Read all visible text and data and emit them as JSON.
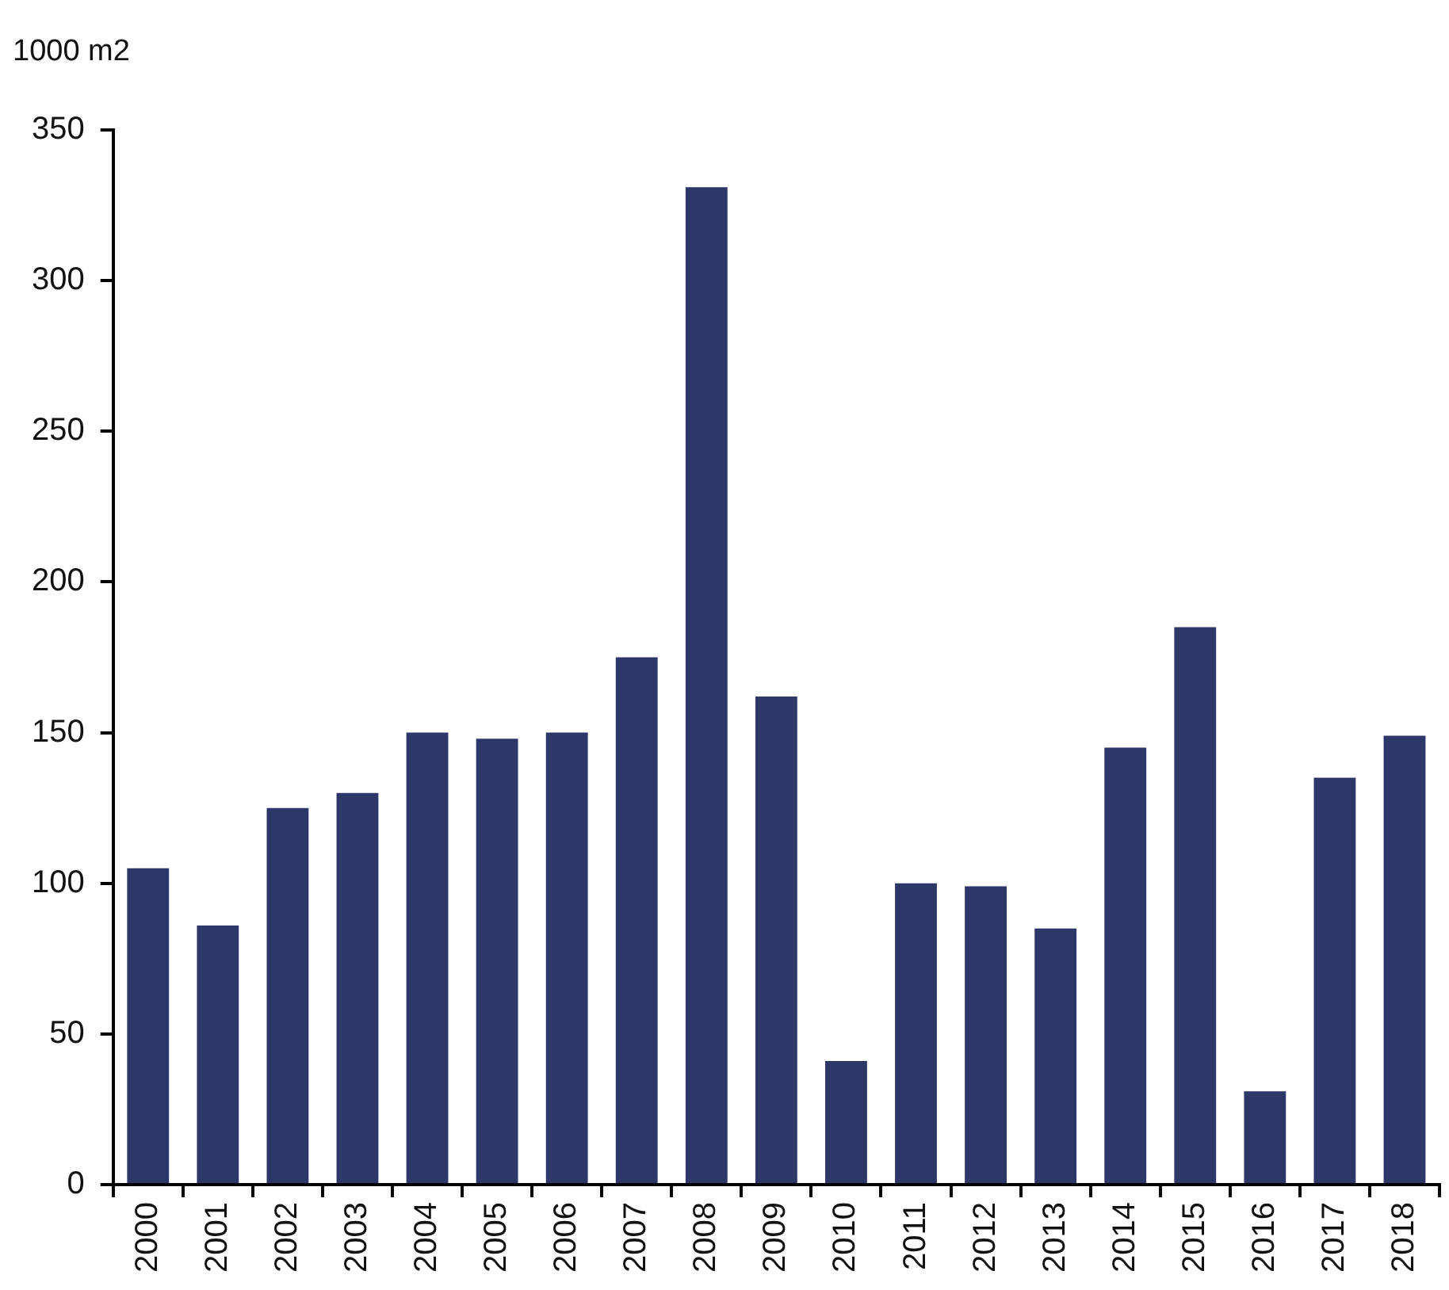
{
  "chart_data": {
    "type": "bar",
    "ylabel": "1000 m2",
    "categories": [
      "2000",
      "2001",
      "2002",
      "2003",
      "2004",
      "2005",
      "2006",
      "2007",
      "2008",
      "2009",
      "2010",
      "2011",
      "2012",
      "2013",
      "2014",
      "2015",
      "2016",
      "2017",
      "2018"
    ],
    "values": [
      105,
      86,
      125,
      130,
      150,
      148,
      150,
      175,
      331,
      162,
      41,
      100,
      99,
      85,
      145,
      185,
      31,
      135,
      149
    ],
    "color": "#2e3868",
    "ylim": [
      0,
      350
    ],
    "yticks": [
      0,
      50,
      100,
      150,
      200,
      250,
      300,
      350
    ],
    "grid": false,
    "legend": false
  }
}
